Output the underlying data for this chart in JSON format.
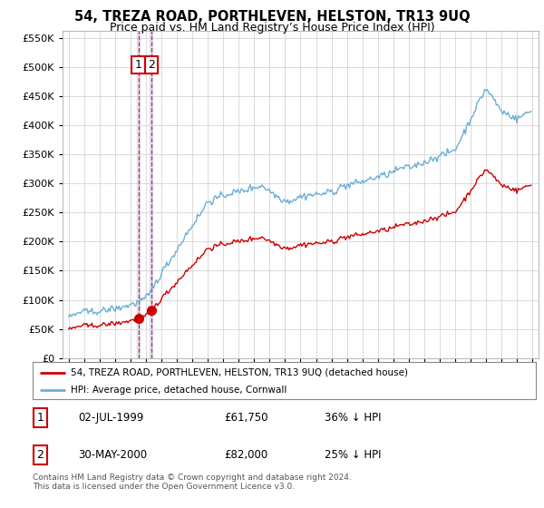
{
  "title": "54, TREZA ROAD, PORTHLEVEN, HELSTON, TR13 9UQ",
  "subtitle": "Price paid vs. HM Land Registry’s House Price Index (HPI)",
  "legend_line1": "54, TREZA ROAD, PORTHLEVEN, HELSTON, TR13 9UQ (detached house)",
  "legend_line2": "HPI: Average price, detached house, Cornwall",
  "footnote": "Contains HM Land Registry data © Crown copyright and database right 2024.\nThis data is licensed under the Open Government Licence v3.0.",
  "transaction1_date": "02-JUL-1999",
  "transaction1_price": "£61,750",
  "transaction1_hpi": "36% ↓ HPI",
  "transaction2_date": "30-MAY-2000",
  "transaction2_price": "£82,000",
  "transaction2_hpi": "25% ↓ HPI",
  "hpi_color": "#6baed6",
  "price_color": "#cc0000",
  "vline_color": "#cc0000",
  "vband_color": "#d0d8f0",
  "background_color": "#ffffff",
  "grid_color": "#cccccc",
  "ylim": [
    0,
    562500
  ],
  "yticks": [
    0,
    50000,
    100000,
    150000,
    200000,
    250000,
    300000,
    350000,
    400000,
    450000,
    500000,
    550000
  ],
  "x_start_year": 1995,
  "x_end_year": 2025
}
